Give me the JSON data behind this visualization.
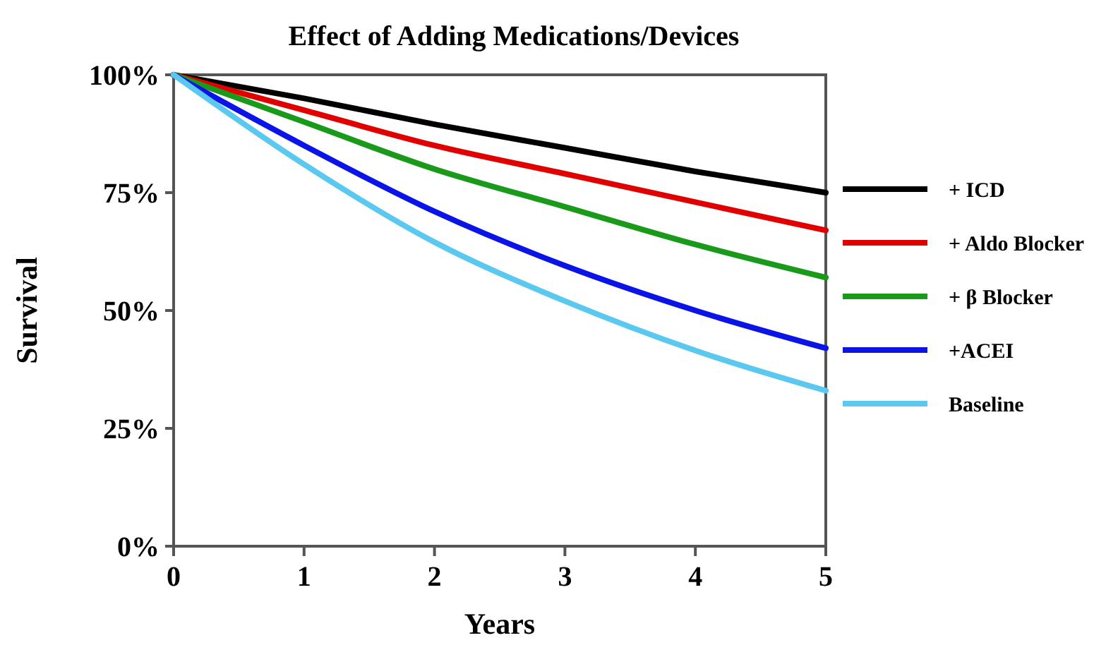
{
  "chart_data": {
    "type": "line",
    "title": "Effect of Adding Medications/Devices",
    "xlabel": "Years",
    "ylabel": "Survival",
    "x": [
      0,
      1,
      2,
      3,
      4,
      5
    ],
    "series": [
      {
        "name": "+ ICD",
        "color": "#000000",
        "values": [
          100,
          95,
          89.5,
          84.5,
          79.5,
          75
        ]
      },
      {
        "name": "+ Aldo Blocker",
        "color": "#e00000",
        "values": [
          100,
          92.5,
          85,
          79,
          73,
          67
        ]
      },
      {
        "name": "+ β Blocker",
        "color": "#1a9a1a",
        "values": [
          100,
          90,
          80,
          72,
          64,
          57
        ]
      },
      {
        "name": "+ACEI",
        "color": "#0a14e6",
        "values": [
          100,
          85,
          71,
          59.5,
          50,
          42
        ]
      },
      {
        "name": "Baseline",
        "color": "#5bc8f0",
        "values": [
          100,
          81,
          64.5,
          52,
          41.5,
          33
        ]
      }
    ],
    "xlim": [
      0,
      5
    ],
    "xticks": [
      0,
      1,
      2,
      3,
      4,
      5
    ],
    "ylim": [
      0,
      100
    ],
    "yticks": [
      {
        "value": 0,
        "label": "0%"
      },
      {
        "value": 25,
        "label": "25%"
      },
      {
        "value": 50,
        "label": "50%"
      },
      {
        "value": 75,
        "label": "75%"
      },
      {
        "value": 100,
        "label": "100%"
      }
    ],
    "grid": false,
    "legend": "right",
    "marker": "none",
    "line_style": "solid"
  }
}
